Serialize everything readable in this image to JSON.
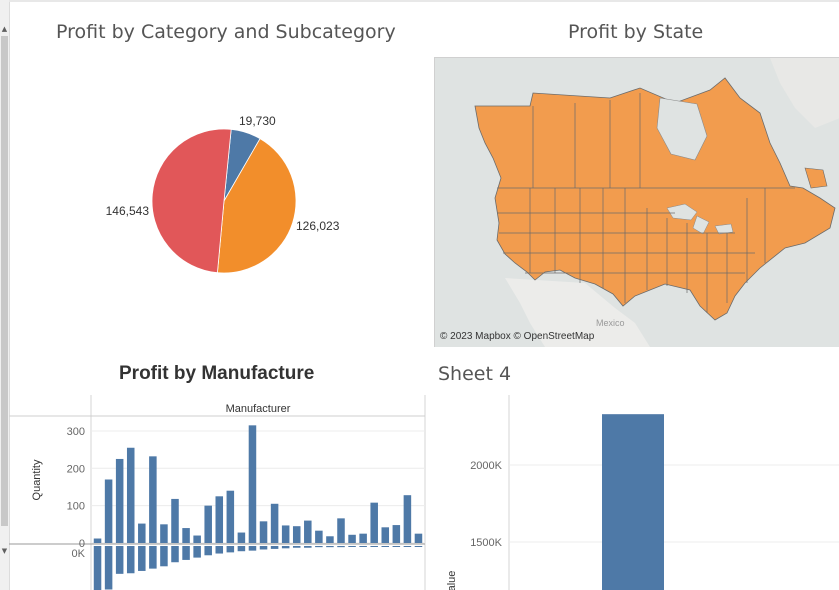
{
  "dashboard": {
    "titles": {
      "pie": "Profit by Category and Subcategory",
      "map": "Profit by State",
      "bar": "Profit by Manufacture",
      "sheet4": "Sheet 4"
    },
    "map": {
      "attribution": "© 2023 Mapbox © OpenStreetMap",
      "place_label": "Mexico",
      "fill_color": "#f29c4e"
    }
  },
  "chart_data": [
    {
      "type": "pie",
      "title": "Profit by Category and Subcategory",
      "slices": [
        {
          "label": "19,730",
          "value": 19730,
          "color": "#4e79a7"
        },
        {
          "label": "126,023",
          "value": 126023,
          "color": "#f28e2b"
        },
        {
          "label": "146,543",
          "value": 146543,
          "color": "#e15759"
        }
      ]
    },
    {
      "type": "bar",
      "title": "Profit by Manufacture",
      "header": "Manufacturer",
      "ylabel": "Quantity",
      "yticks": [
        "300",
        "200",
        "100",
        "0"
      ],
      "ylim": [
        0,
        340
      ],
      "lower_tick": "0K",
      "color": "#4e79a7",
      "values": [
        12,
        170,
        225,
        255,
        52,
        232,
        50,
        118,
        40,
        20,
        100,
        125,
        140,
        28,
        315,
        58,
        105,
        47,
        45,
        60,
        33,
        18,
        66,
        22,
        25,
        108,
        42,
        48,
        128,
        25
      ],
      "lower_values": [
        78,
        75,
        48,
        47,
        43,
        39,
        35,
        28,
        24,
        20,
        16,
        13,
        11,
        9,
        8,
        6,
        5,
        4,
        3,
        3,
        2,
        2,
        2,
        1,
        1,
        1,
        1,
        1,
        1,
        1
      ]
    },
    {
      "type": "bar",
      "title": "Sheet 4",
      "ylabel": "alue",
      "yticks": [
        "2000K",
        "1500K"
      ],
      "color": "#4e79a7",
      "values": [
        2330000
      ]
    }
  ]
}
